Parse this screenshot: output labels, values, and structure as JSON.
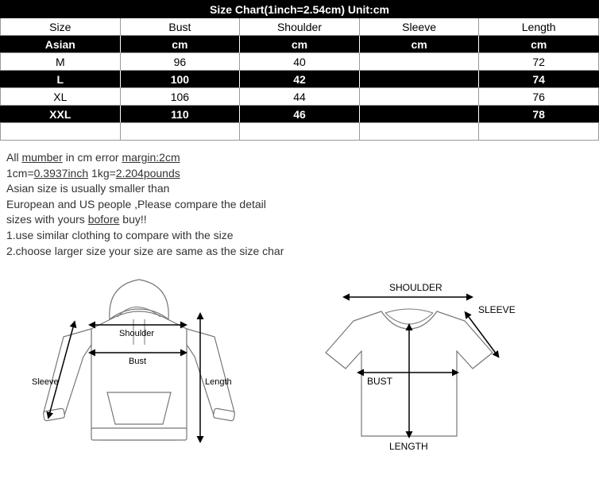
{
  "table": {
    "title": "Size Chart(1inch=2.54cm)    Unit:cm",
    "columns": [
      "Size",
      "Bust",
      "Shoulder",
      "Sleeve",
      "Length"
    ],
    "unit_row": [
      "Asian",
      "cm",
      "cm",
      "cm",
      "cm"
    ],
    "rows": [
      {
        "name": "M",
        "bust": "96",
        "shoulder": "40",
        "sleeve": "",
        "length": "72",
        "style": "white"
      },
      {
        "name": "L",
        "bust": "100",
        "shoulder": "42",
        "sleeve": "",
        "length": "74",
        "style": "black"
      },
      {
        "name": "XL",
        "bust": "106",
        "shoulder": "44",
        "sleeve": "",
        "length": "76",
        "style": "white"
      },
      {
        "name": "XXL",
        "bust": "110",
        "shoulder": "46",
        "sleeve": "",
        "length": "78",
        "style": "black"
      }
    ],
    "empty_row": [
      "",
      "",
      "",
      "",
      ""
    ],
    "colors": {
      "black_bg": "#000000",
      "white_bg": "#ffffff",
      "border": "#999999",
      "text_light": "#ffffff",
      "text_dark": "#000000"
    }
  },
  "notes": {
    "line1a": "All ",
    "line1b": "mumber",
    "line1c": " in cm error ",
    "line1d": "margin:2cm",
    "line2a": "1cm=",
    "line2b": "0.3937inch",
    "line2c": " 1kg=",
    "line2d": "2.204pounds",
    "line3": "Asian size is usually smaller than",
    "line4": "European and US people ,Please compare the detail",
    "line5a": "sizes with yours ",
    "line5b": "bofore",
    "line5c": " buy!!",
    "line6": "1.use similar clothing to compare with the size",
    "line7": "2.choose larger size your size are same as the size char"
  },
  "diagrams": {
    "hoodie": {
      "labels": {
        "shoulder": "Shoulder",
        "bust": "Bust",
        "length": "Length",
        "sleeve": "Sleeve"
      },
      "stroke": "#777777",
      "arrow": "#000000"
    },
    "tshirt": {
      "labels": {
        "shoulder": "SHOULDER",
        "bust": "BUST",
        "length": "LENGTH",
        "sleeve": "SLEEVE"
      },
      "stroke": "#444444",
      "arrow": "#000000"
    }
  }
}
